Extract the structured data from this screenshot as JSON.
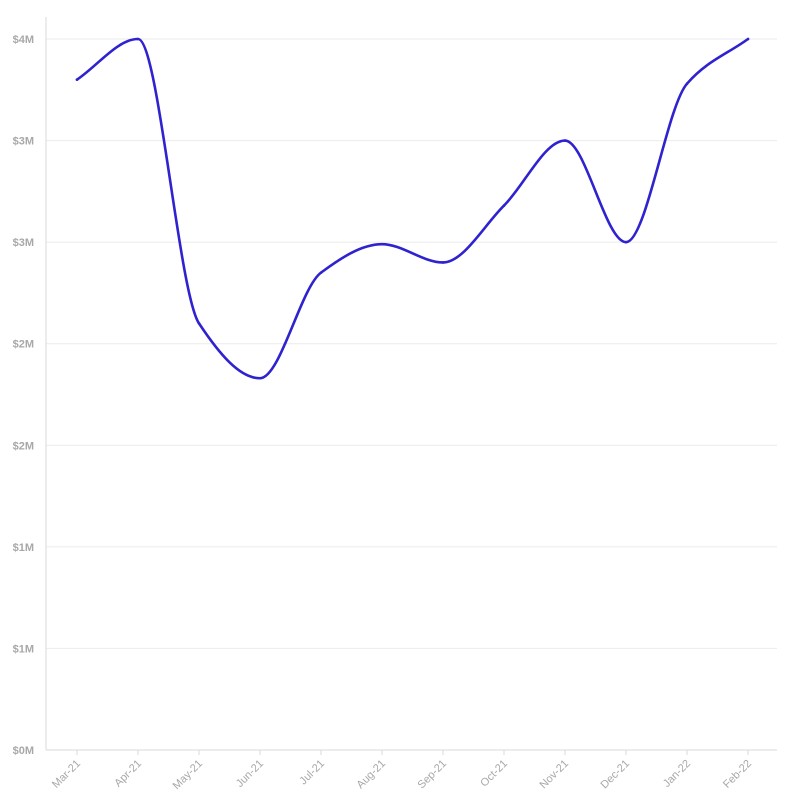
{
  "chart_data": {
    "type": "line",
    "title": "",
    "xlabel": "",
    "ylabel": "",
    "categories": [
      "Mar-21",
      "Apr-21",
      "May-21",
      "Jun-21",
      "Jul-21",
      "Aug-21",
      "Sep-21",
      "Oct-21",
      "Nov-21",
      "Dec-21",
      "Jan-22",
      "Feb-22"
    ],
    "series": [
      {
        "values": [
          3.3,
          3.5,
          2.1,
          1.83,
          2.35,
          2.49,
          2.4,
          2.68,
          3.0,
          2.5,
          3.28,
          3.5
        ]
      }
    ],
    "ylim": [
      0,
      3.5
    ],
    "yticks": [
      0,
      0.5,
      1.0,
      1.5,
      2.0,
      2.5,
      3.0,
      3.5
    ],
    "ytick_labels": [
      "$0M",
      "$1M",
      "$1M",
      "$2M",
      "$2M",
      "$3M",
      "$3M",
      "$4M"
    ],
    "grid": true,
    "legend": "none",
    "colors": {
      "line": "#2f22cf",
      "grid": "#ebebeb",
      "axis": "#d9d9d9",
      "tick_text": "#a8a8a8"
    }
  }
}
